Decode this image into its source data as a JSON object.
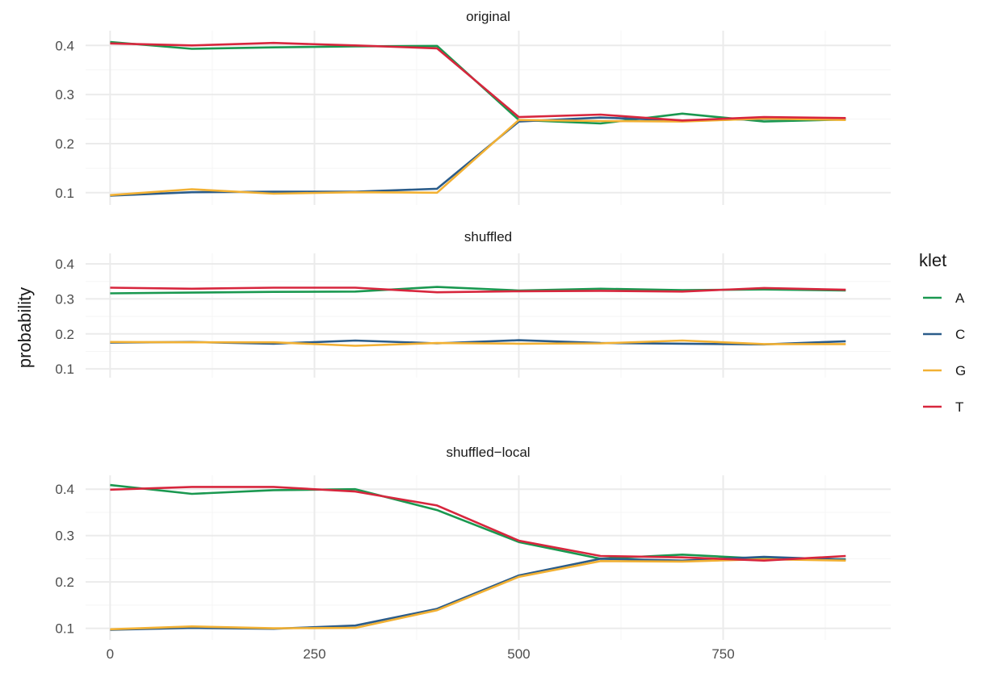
{
  "chart_data": {
    "type": "line",
    "facets": [
      "original",
      "shuffled",
      "shuffled−local"
    ],
    "ylabel": "probability",
    "xlabel": "",
    "xlim": [
      -30,
      955
    ],
    "ylim": [
      0.075,
      0.43
    ],
    "x_ticks": [
      0,
      250,
      500,
      750
    ],
    "x_tick_labels": [
      "0",
      "250",
      "500",
      "750"
    ],
    "y_ticks": [
      0.1,
      0.2,
      0.3,
      0.4
    ],
    "y_tick_labels": [
      "0.1",
      "0.2",
      "0.3",
      "0.4"
    ],
    "grid": true,
    "legend": {
      "title": "klet",
      "position": "right",
      "entries": [
        "A",
        "C",
        "G",
        "T"
      ]
    },
    "colors": {
      "A": "#1a9850",
      "C": "#2b5c8a",
      "G": "#f2b134",
      "T": "#d7263d"
    },
    "x": [
      0,
      100,
      200,
      300,
      400,
      500,
      600,
      700,
      800,
      900
    ],
    "panels": [
      {
        "name": "original",
        "series": [
          {
            "name": "A",
            "values": [
              0.407,
              0.393,
              0.396,
              0.398,
              0.399,
              0.248,
              0.241,
              0.261,
              0.245,
              0.249
            ]
          },
          {
            "name": "C",
            "values": [
              0.094,
              0.101,
              0.102,
              0.102,
              0.108,
              0.245,
              0.253,
              0.247,
              0.25,
              0.25
            ]
          },
          {
            "name": "G",
            "values": [
              0.095,
              0.107,
              0.098,
              0.101,
              0.1,
              0.248,
              0.246,
              0.245,
              0.251,
              0.248
            ]
          },
          {
            "name": "T",
            "values": [
              0.404,
              0.4,
              0.405,
              0.4,
              0.394,
              0.254,
              0.259,
              0.247,
              0.254,
              0.252
            ]
          }
        ]
      },
      {
        "name": "shuffled",
        "series": [
          {
            "name": "A",
            "values": [
              0.316,
              0.318,
              0.32,
              0.321,
              0.334,
              0.324,
              0.329,
              0.325,
              0.327,
              0.324
            ]
          },
          {
            "name": "C",
            "values": [
              0.175,
              0.177,
              0.172,
              0.181,
              0.173,
              0.182,
              0.174,
              0.172,
              0.17,
              0.179
            ]
          },
          {
            "name": "G",
            "values": [
              0.177,
              0.176,
              0.176,
              0.166,
              0.174,
              0.172,
              0.173,
              0.181,
              0.171,
              0.171
            ]
          },
          {
            "name": "T",
            "values": [
              0.332,
              0.329,
              0.332,
              0.332,
              0.319,
              0.322,
              0.323,
              0.321,
              0.331,
              0.326
            ]
          }
        ]
      },
      {
        "name": "shuffled−local",
        "series": [
          {
            "name": "A",
            "values": [
              0.409,
              0.39,
              0.398,
              0.4,
              0.355,
              0.286,
              0.25,
              0.259,
              0.25,
              0.249
            ]
          },
          {
            "name": "C",
            "values": [
              0.097,
              0.101,
              0.099,
              0.106,
              0.142,
              0.214,
              0.25,
              0.246,
              0.254,
              0.248
            ]
          },
          {
            "name": "G",
            "values": [
              0.098,
              0.104,
              0.1,
              0.101,
              0.139,
              0.211,
              0.245,
              0.244,
              0.249,
              0.246
            ]
          },
          {
            "name": "T",
            "values": [
              0.399,
              0.405,
              0.405,
              0.395,
              0.365,
              0.289,
              0.256,
              0.253,
              0.246,
              0.256
            ]
          }
        ]
      }
    ]
  }
}
